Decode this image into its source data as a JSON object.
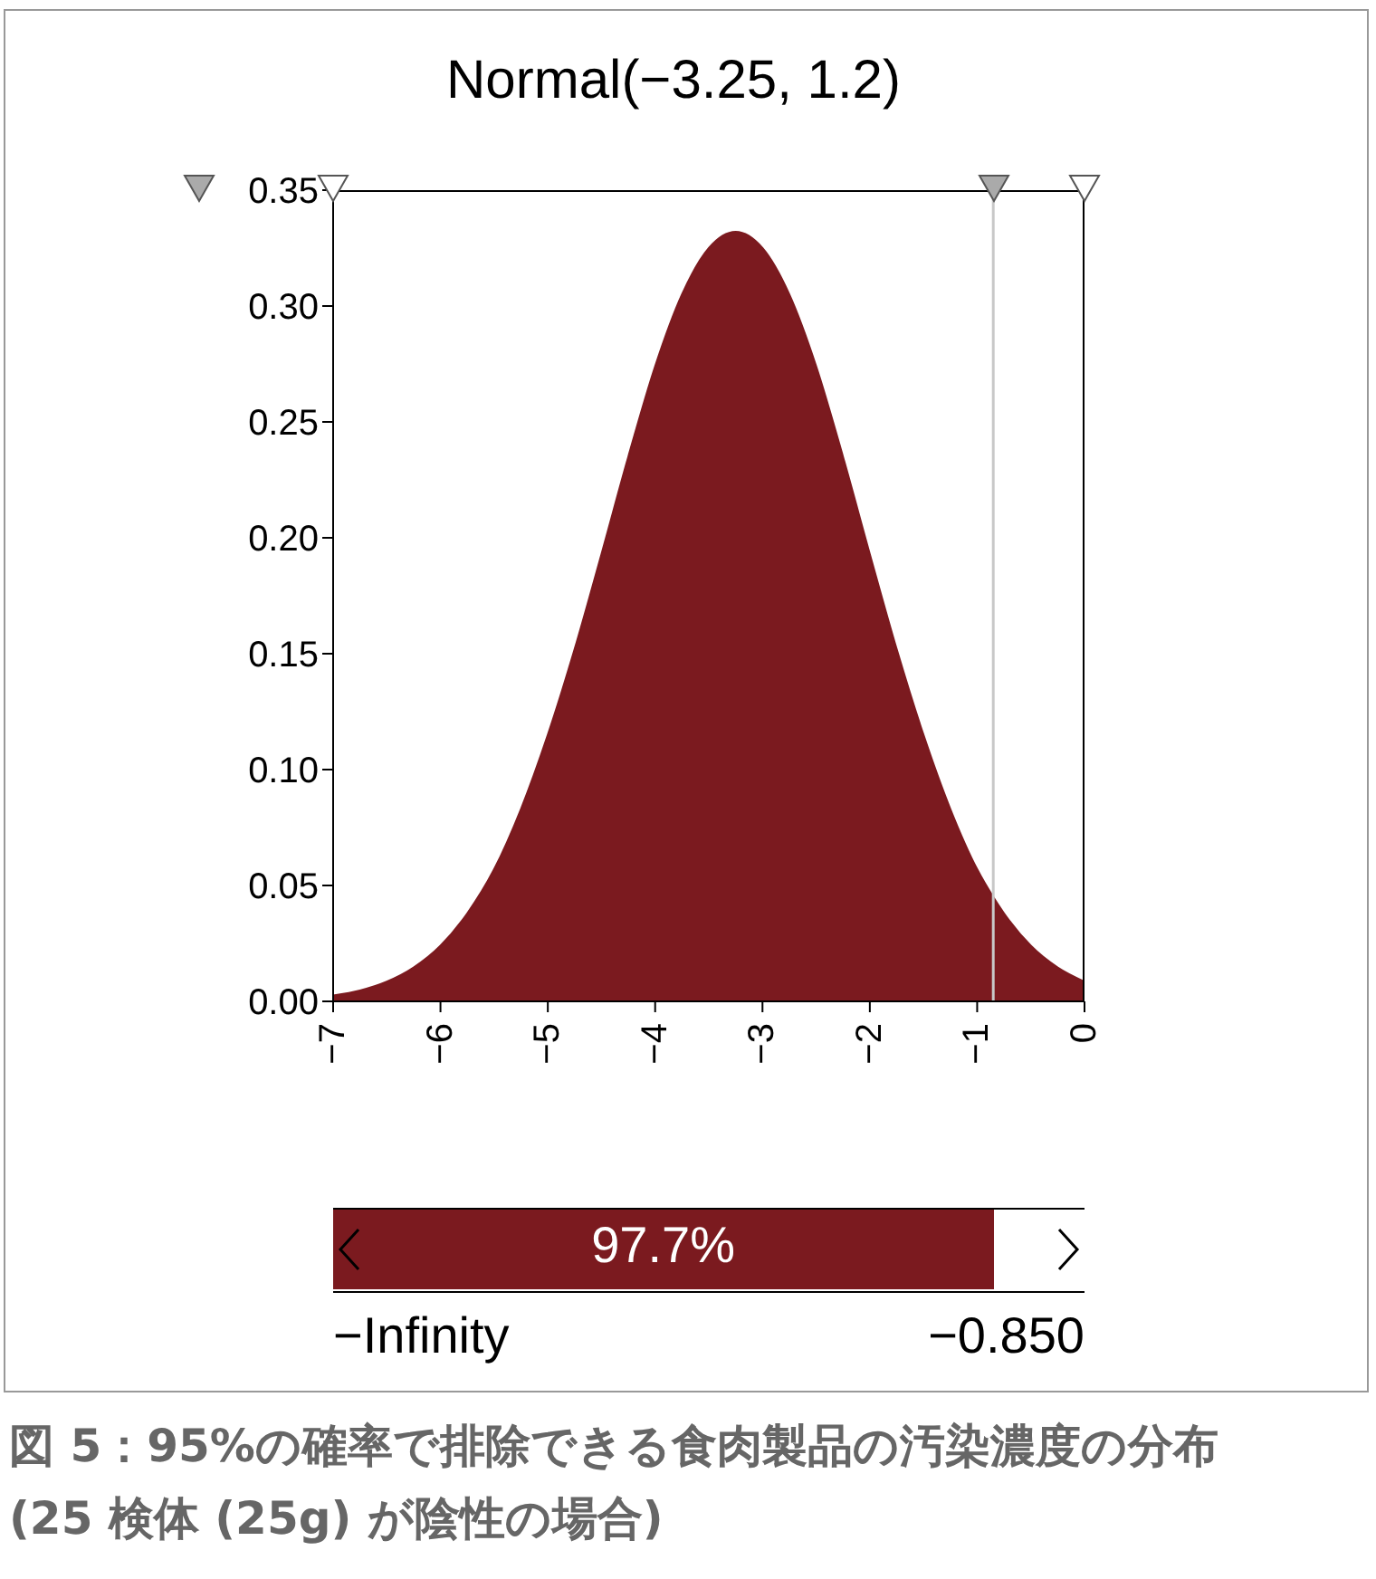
{
  "chart_data": {
    "type": "area",
    "title": "Normal(−3.25, 1.2)",
    "x": [
      -7,
      -6.75,
      -6.5,
      -6.25,
      -6,
      -5.75,
      -5.5,
      -5.25,
      -5,
      -4.75,
      -4.5,
      -4.25,
      -4,
      -3.75,
      -3.5,
      -3.25,
      -3,
      -2.75,
      -2.5,
      -2.25,
      -2,
      -1.75,
      -1.5,
      -1.25,
      -1,
      -0.85,
      -0.75,
      -0.5,
      -0.25,
      0
    ],
    "series": [
      {
        "color": "#7b1a1f",
        "values": [
          0.0025,
          0.0047,
          0.0085,
          0.0146,
          0.024,
          0.038,
          0.057,
          0.083,
          0.115,
          0.152,
          0.193,
          0.235,
          0.274,
          0.305,
          0.325,
          0.332,
          0.325,
          0.305,
          0.274,
          0.235,
          0.193,
          0.152,
          0.115,
          0.083,
          0.057,
          0.045,
          0.038,
          0.024,
          0.0146,
          0.0085
        ]
      }
    ],
    "xlim": [
      -7,
      0
    ],
    "xticks": [
      -7,
      -6,
      -5,
      -4,
      -3,
      -2,
      -1,
      0
    ],
    "ylim": [
      0,
      0.35
    ],
    "yticks": [
      {
        "value": 0,
        "label": "0.00"
      },
      {
        "value": 0.05,
        "label": "0.05"
      },
      {
        "value": 0.1,
        "label": "0.10"
      },
      {
        "value": 0.15,
        "label": "0.15"
      },
      {
        "value": 0.2,
        "label": "0.20"
      },
      {
        "value": 0.25,
        "label": "0.25"
      },
      {
        "value": 0.3,
        "label": "0.30"
      },
      {
        "value": 0.35,
        "label": "0.35"
      }
    ],
    "ref_lines": [
      {
        "axis": "x",
        "value": -0.85,
        "color": "#c8c8c8"
      }
    ],
    "annotations": [
      "97.7%",
      "−Infinity",
      "−0.850",
      "図 5：95%の確率で排除できる食肉製品の汚染濃度の分布",
      "(25 検体 (25g) が陰性の場合)"
    ],
    "grid": false,
    "legend": false
  }
}
